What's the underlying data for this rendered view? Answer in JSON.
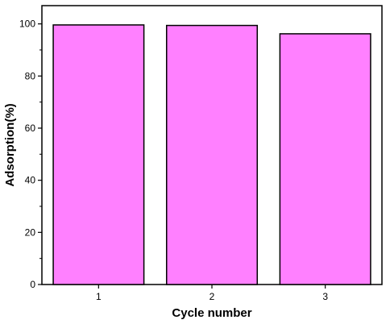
{
  "chart_data": {
    "type": "bar",
    "title": "",
    "xlabel": "Cycle number",
    "ylabel": "Adsorption(%)",
    "categories": [
      "1",
      "2",
      "3"
    ],
    "values": [
      99.6,
      99.4,
      96.2
    ],
    "ylim": [
      0,
      107
    ],
    "yticks": [
      0,
      20,
      40,
      60,
      80,
      100
    ],
    "grid": false,
    "legend": "none",
    "bar_color": "#ff80ff",
    "edge_color": "#000000"
  }
}
